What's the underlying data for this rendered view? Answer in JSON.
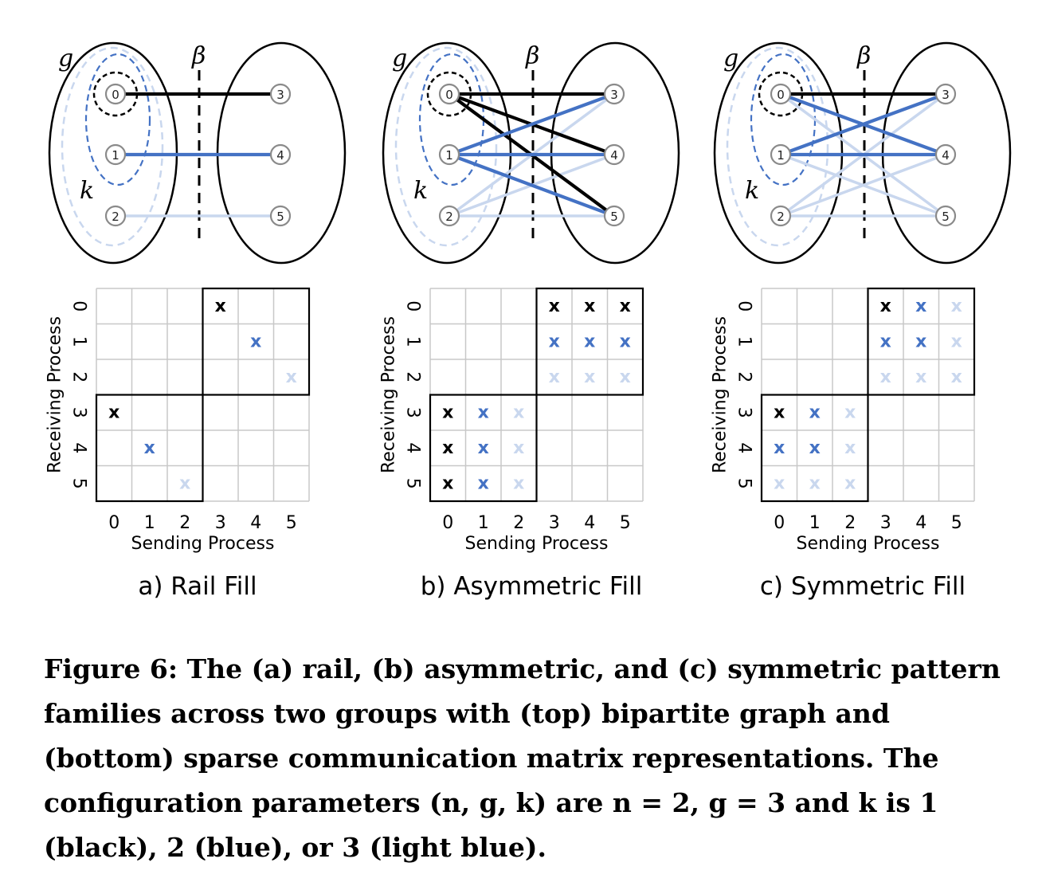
{
  "colors": {
    "k1": "#000000",
    "k2": "#4472c4",
    "k3": "#c9d7ee",
    "grid": "#c8c8c8",
    "node_stroke": "#8a8a8a"
  },
  "panels": [
    {
      "id": "a",
      "title": "a) Rail Fill",
      "edges": [
        [
          0,
          3,
          1
        ],
        [
          1,
          4,
          2
        ],
        [
          2,
          5,
          3
        ]
      ],
      "matrix_cells": [
        {
          "send": 3,
          "recv": 0,
          "k": 1
        },
        {
          "send": 4,
          "recv": 1,
          "k": 2
        },
        {
          "send": 5,
          "recv": 2,
          "k": 3
        },
        {
          "send": 0,
          "recv": 3,
          "k": 1
        },
        {
          "send": 1,
          "recv": 4,
          "k": 2
        },
        {
          "send": 2,
          "recv": 5,
          "k": 3
        }
      ]
    },
    {
      "id": "b",
      "title": "b) Asymmetric Fill",
      "edges": [
        [
          2,
          3,
          3
        ],
        [
          2,
          4,
          3
        ],
        [
          2,
          5,
          3
        ],
        [
          0,
          3,
          1
        ],
        [
          0,
          4,
          1
        ],
        [
          0,
          5,
          1
        ],
        [
          1,
          3,
          2
        ],
        [
          1,
          4,
          2
        ],
        [
          1,
          5,
          2
        ]
      ],
      "matrix_cells": [
        {
          "send": 3,
          "recv": 0,
          "k": 1
        },
        {
          "send": 4,
          "recv": 0,
          "k": 1
        },
        {
          "send": 5,
          "recv": 0,
          "k": 1
        },
        {
          "send": 3,
          "recv": 1,
          "k": 2
        },
        {
          "send": 4,
          "recv": 1,
          "k": 2
        },
        {
          "send": 5,
          "recv": 1,
          "k": 2
        },
        {
          "send": 3,
          "recv": 2,
          "k": 3
        },
        {
          "send": 4,
          "recv": 2,
          "k": 3
        },
        {
          "send": 5,
          "recv": 2,
          "k": 3
        },
        {
          "send": 0,
          "recv": 3,
          "k": 1
        },
        {
          "send": 1,
          "recv": 3,
          "k": 2
        },
        {
          "send": 2,
          "recv": 3,
          "k": 3
        },
        {
          "send": 0,
          "recv": 4,
          "k": 1
        },
        {
          "send": 1,
          "recv": 4,
          "k": 2
        },
        {
          "send": 2,
          "recv": 4,
          "k": 3
        },
        {
          "send": 0,
          "recv": 5,
          "k": 1
        },
        {
          "send": 1,
          "recv": 5,
          "k": 2
        },
        {
          "send": 2,
          "recv": 5,
          "k": 3
        }
      ]
    },
    {
      "id": "c",
      "title": "c) Symmetric Fill",
      "edges": [
        [
          0,
          5,
          3
        ],
        [
          1,
          5,
          3
        ],
        [
          2,
          3,
          3
        ],
        [
          2,
          4,
          3
        ],
        [
          2,
          5,
          3
        ],
        [
          0,
          3,
          1
        ],
        [
          0,
          4,
          2
        ],
        [
          1,
          3,
          2
        ],
        [
          1,
          4,
          2
        ]
      ],
      "matrix_cells": [
        {
          "send": 3,
          "recv": 0,
          "k": 1
        },
        {
          "send": 4,
          "recv": 0,
          "k": 2
        },
        {
          "send": 5,
          "recv": 0,
          "k": 3
        },
        {
          "send": 3,
          "recv": 1,
          "k": 2
        },
        {
          "send": 4,
          "recv": 1,
          "k": 2
        },
        {
          "send": 5,
          "recv": 1,
          "k": 3
        },
        {
          "send": 3,
          "recv": 2,
          "k": 3
        },
        {
          "send": 4,
          "recv": 2,
          "k": 3
        },
        {
          "send": 5,
          "recv": 2,
          "k": 3
        },
        {
          "send": 0,
          "recv": 3,
          "k": 1
        },
        {
          "send": 1,
          "recv": 3,
          "k": 2
        },
        {
          "send": 2,
          "recv": 3,
          "k": 3
        },
        {
          "send": 0,
          "recv": 4,
          "k": 2
        },
        {
          "send": 1,
          "recv": 4,
          "k": 2
        },
        {
          "send": 2,
          "recv": 4,
          "k": 3
        },
        {
          "send": 0,
          "recv": 5,
          "k": 3
        },
        {
          "send": 1,
          "recv": 5,
          "k": 3
        },
        {
          "send": 2,
          "recv": 5,
          "k": 3
        }
      ]
    }
  ],
  "labels": {
    "g": "g",
    "k": "k",
    "beta": "β",
    "node_labels": [
      "0",
      "1",
      "2",
      "3",
      "4",
      "5"
    ],
    "tick_labels": [
      "0",
      "1",
      "2",
      "3",
      "4",
      "5"
    ],
    "x_axis": "Sending Process",
    "y_axis": "Receiving Process",
    "mark": "x"
  },
  "caption": "Figure 6: The (a) rail, (b) asymmetric, and (c) symmetric pattern families across two groups with (top) bipartite graph and (bottom) sparse communication matrix representations. The configuration parameters (n, g, k) are n = 2, g = 3 and k is 1 (black), 2 (blue), or 3 (light blue)."
}
